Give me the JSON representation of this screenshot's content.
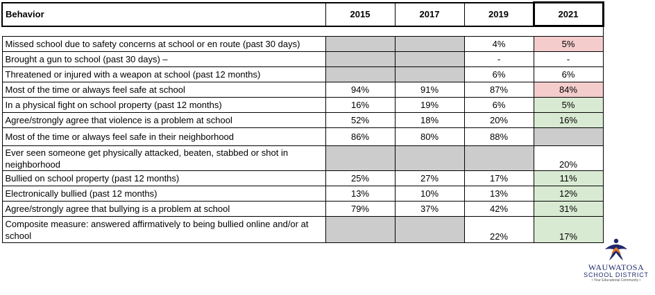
{
  "table": {
    "headers": [
      "Behavior",
      "2015",
      "2017",
      "2019",
      "2021"
    ],
    "rows": [
      {
        "label": "Missed school due to safety concerns at school or en route (past 30 days)",
        "values": [
          "",
          "",
          "4%",
          "5%"
        ],
        "fills": [
          "grey",
          "grey",
          "",
          "red"
        ]
      },
      {
        "label": "Brought a gun to school (past 30 days) –",
        "values": [
          "",
          "",
          "-",
          "-"
        ],
        "fills": [
          "grey",
          "grey",
          "",
          ""
        ]
      },
      {
        "label": "Threatened or injured with a weapon at school (past 12 months)",
        "values": [
          "",
          "",
          "6%",
          "6%"
        ],
        "fills": [
          "grey",
          "grey",
          "",
          ""
        ]
      },
      {
        "label": "Most of the time or always feel safe at school",
        "values": [
          "94%",
          "91%",
          "87%",
          "84%"
        ],
        "fills": [
          "",
          "",
          "",
          "red"
        ]
      },
      {
        "label": "In a physical fight on school property (past 12 months)",
        "values": [
          "16%",
          "19%",
          "6%",
          "5%"
        ],
        "fills": [
          "",
          "",
          "",
          "green"
        ]
      },
      {
        "label": "Agree/strongly agree that violence is a problem at school",
        "values": [
          "52%",
          "18%",
          "20%",
          "16%"
        ],
        "fills": [
          "",
          "",
          "",
          "green"
        ]
      },
      {
        "label": "Most of the time or always feel safe in their neighborhood",
        "values": [
          "86%",
          "80%",
          "88%",
          ""
        ],
        "fills": [
          "",
          "",
          "",
          "grey"
        ]
      },
      {
        "label": "Ever seen someone get physically attacked, beaten, stabbed or shot in neighborhood",
        "values": [
          "",
          "",
          "",
          "20%"
        ],
        "fills": [
          "grey",
          "grey",
          "grey",
          ""
        ]
      },
      {
        "label": "Bullied on school property (past 12 months)",
        "values": [
          "25%",
          "27%",
          "17%",
          "11%"
        ],
        "fills": [
          "",
          "",
          "",
          "green"
        ]
      },
      {
        "label": "Electronically bullied (past 12 months)",
        "values": [
          "13%",
          "10%",
          "13%",
          "12%"
        ],
        "fills": [
          "",
          "",
          "",
          "green"
        ]
      },
      {
        "label": "Agree/strongly agree that bullying is a problem at school",
        "values": [
          "79%",
          "37%",
          "42%",
          "31%"
        ],
        "fills": [
          "",
          "",
          "",
          "green"
        ]
      },
      {
        "label": "Composite measure: answered affirmatively to being bullied online and/or at school",
        "values": [
          "",
          "",
          "22%",
          "17%"
        ],
        "fills": [
          "grey",
          "grey",
          "",
          "green"
        ]
      }
    ]
  },
  "logo": {
    "line1": "WAUWATOSA",
    "line2": "SCHOOL DISTRICT",
    "line3": "• Your Educational Community •"
  },
  "colors": {
    "grey_fill": "#cccccc",
    "red_fill": "#f4cccc",
    "green_fill": "#d9ead3",
    "logo_navy": "#1f2a6b",
    "logo_orange": "#e8762c"
  }
}
